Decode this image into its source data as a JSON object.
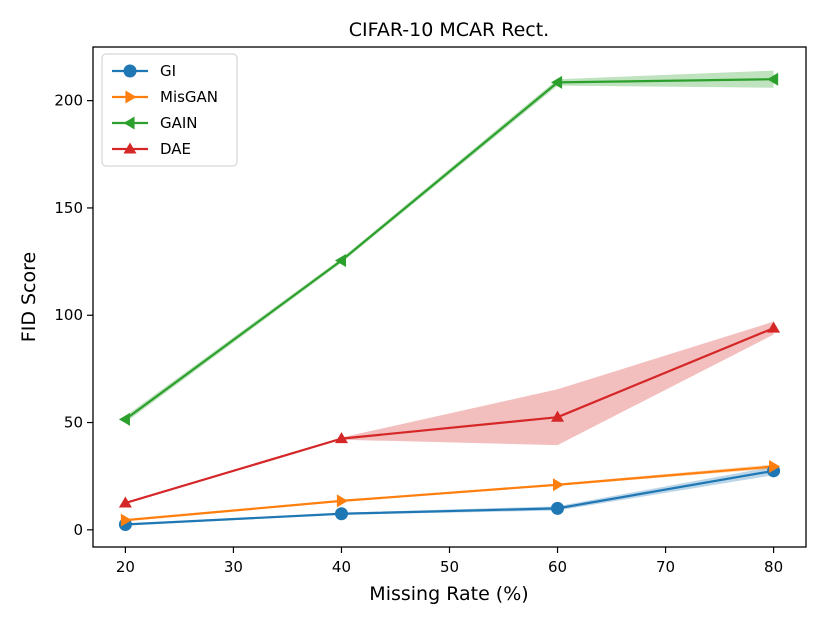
{
  "chart_data": {
    "type": "line",
    "title": "CIFAR-10 MCAR Rect.",
    "xlabel": "Missing Rate (%)",
    "ylabel": "FID Score",
    "x": [
      20,
      40,
      60,
      80
    ],
    "xlim": [
      17,
      83
    ],
    "ylim": [
      -8,
      225
    ],
    "xticks": [
      20,
      30,
      40,
      50,
      60,
      70,
      80
    ],
    "yticks": [
      0,
      50,
      100,
      150,
      200
    ],
    "grid": false,
    "legend_position": "upper-left",
    "series": [
      {
        "name": "GI",
        "marker": "circle",
        "color": "#1f77b4",
        "values": [
          2.5,
          7.5,
          10,
          27.5
        ],
        "band_low": [
          2,
          7,
          9,
          25.5
        ],
        "band_high": [
          3,
          8,
          11,
          29.5
        ]
      },
      {
        "name": "MisGAN",
        "marker": "triangle-right",
        "color": "#ff7f0e",
        "values": [
          4.5,
          13.5,
          21,
          29.5
        ],
        "band_low": [
          4,
          13,
          20.5,
          28.5
        ],
        "band_high": [
          5,
          14,
          21.5,
          30.5
        ]
      },
      {
        "name": "GAIN",
        "marker": "triangle-left",
        "color": "#2ca02c",
        "values": [
          51.5,
          125.5,
          208.5,
          210
        ],
        "band_low": [
          50,
          124.5,
          207,
          206
        ],
        "band_high": [
          53,
          126.5,
          210,
          214
        ]
      },
      {
        "name": "DAE",
        "marker": "triangle-up",
        "color": "#d62728",
        "values": [
          12.5,
          42.5,
          52.5,
          94
        ],
        "band_low": [
          12,
          42,
          39.5,
          91
        ],
        "band_high": [
          13,
          43,
          65.5,
          97
        ]
      }
    ]
  }
}
